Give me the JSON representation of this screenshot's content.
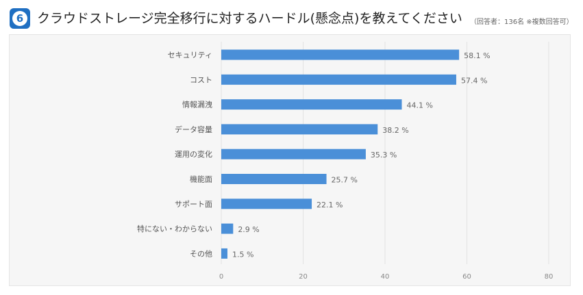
{
  "header": {
    "number": "6",
    "title": "クラウドストレージ完全移行に対するハードル(懸念点)を教えてください",
    "note": "（回答者：136名 ※複数回答可）"
  },
  "colors": {
    "bar": "#4a8fd8",
    "accent": "#1f6fc2"
  },
  "chart_data": {
    "type": "bar",
    "orientation": "horizontal",
    "title": "クラウドストレージ完全移行に対するハードル(懸念点)を教えてください",
    "categories": [
      "セキュリティ",
      "コスト",
      "情報漏洩",
      "データ容量",
      "運用の変化",
      "機能面",
      "サポート面",
      "特にない・わからない",
      "その他"
    ],
    "values": [
      58.1,
      57.4,
      44.1,
      38.2,
      35.3,
      25.7,
      22.1,
      2.9,
      1.5
    ],
    "labels": [
      "58.1 %",
      "57.4 %",
      "44.1 %",
      "38.2 %",
      "35.3 %",
      "25.7 %",
      "22.1 %",
      "2.9 %",
      "1.5 %"
    ],
    "unit": "%",
    "xlim": [
      0,
      80
    ],
    "xticks": [
      0,
      20,
      40,
      60,
      80
    ],
    "grid": true,
    "xlabel": "",
    "ylabel": ""
  }
}
